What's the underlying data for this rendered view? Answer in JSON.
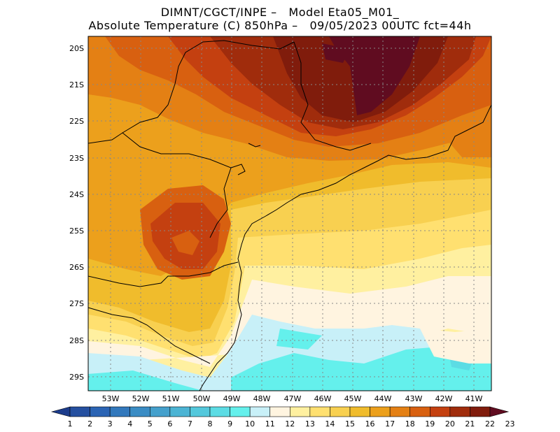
{
  "header": {
    "line1": "DIMNT/CGCT/INPE –   Model Eta05_M01_",
    "line2": "Absolute Temperature (C) 850hPa –   09/05/2023 00UTC fct=44h"
  },
  "map": {
    "lat_labels": [
      "20S",
      "21S",
      "22S",
      "23S",
      "24S",
      "25S",
      "26S",
      "27S",
      "28S",
      "29S"
    ],
    "lon_labels": [
      "53W",
      "52W",
      "51W",
      "50W",
      "49W",
      "48W",
      "47W",
      "46W",
      "45W",
      "44W",
      "43W",
      "42W",
      "41W"
    ]
  },
  "colorbar": {
    "labels": [
      "1",
      "2",
      "3",
      "4",
      "5",
      "6",
      "7",
      "8",
      "9",
      "10",
      "11",
      "12",
      "13",
      "14",
      "15",
      "16",
      "17",
      "18",
      "19",
      "20",
      "21",
      "22",
      "23"
    ],
    "colors": [
      "#1c3c8c",
      "#2550a0",
      "#2b64b4",
      "#3278bc",
      "#3a8cc4",
      "#44a0cc",
      "#4cb4d4",
      "#54c8dc",
      "#5cdce4",
      "#64f0ec",
      "#c8f0f8",
      "#fff4e0",
      "#fff0a0",
      "#ffe070",
      "#f8d050",
      "#f0bc2c",
      "#eca01c",
      "#e48014",
      "#d86010",
      "#c44010",
      "#a02c0c",
      "#801c0c",
      "#600c20"
    ]
  }
}
